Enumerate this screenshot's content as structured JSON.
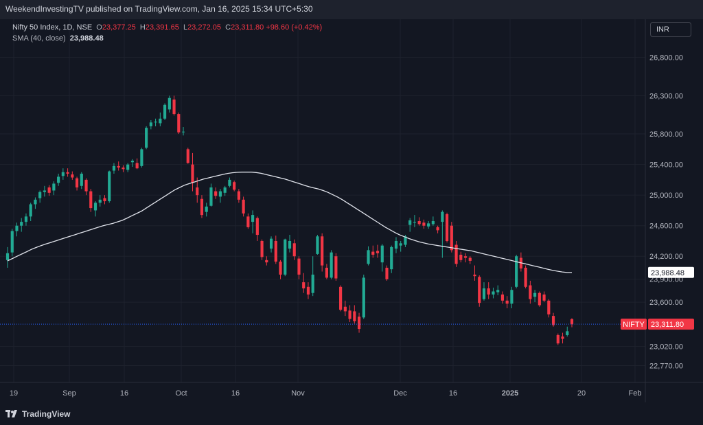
{
  "header": {
    "published_text": "WeekendInvestingTV published on TradingView.com, Jan 16, 2025 15:34 UTC+5:30"
  },
  "legend": {
    "symbol": "Nifty 50 Index, 1D, NSE",
    "open_label": "O",
    "open": "23,377.25",
    "high_label": "H",
    "high": "23,391.65",
    "low_label": "L",
    "low": "23,272.05",
    "close_label": "C",
    "close": "23,311.80",
    "change": "+98.60 (+0.42%)",
    "sma_label": "SMA (40, close)",
    "sma_value": "23,988.48"
  },
  "currency": "INR",
  "footer": {
    "brand": "TradingView"
  },
  "colors": {
    "up": "#22ab94",
    "down": "#f23645",
    "sma": "#e0e3eb",
    "bg": "#131722",
    "grid": "#1e222d"
  },
  "chart_data": {
    "type": "candlestick",
    "title": "Nifty 50 Index, 1D, NSE",
    "price_axis": {
      "ticks": [
        "26,800.00",
        "26,300.00",
        "25,800.00",
        "25,400.00",
        "25,000.00",
        "24,600.00",
        "24,200.00",
        "23,900.00",
        "23,600.00",
        "23,020.00",
        "22,770.00"
      ],
      "ylim": [
        22550,
        27300
      ]
    },
    "time_axis": {
      "ticks": [
        {
          "label": "19",
          "bold": false
        },
        {
          "label": "Sep",
          "bold": false
        },
        {
          "label": "16",
          "bold": false
        },
        {
          "label": "Oct",
          "bold": false
        },
        {
          "label": "16",
          "bold": false
        },
        {
          "label": "Nov",
          "bold": false
        },
        {
          "label": "Dec",
          "bold": false
        },
        {
          "label": "16",
          "bold": false
        },
        {
          "label": "2025",
          "bold": true
        },
        {
          "label": "20",
          "bold": false
        },
        {
          "label": "Feb",
          "bold": false
        }
      ]
    },
    "last_price_tag": {
      "symbol": "NIFTY",
      "value": "23,311.80",
      "price": 23311.8
    },
    "sma_tag": {
      "value": "23,988.48",
      "price": 23988.48
    },
    "candles": [
      [
        24150,
        24320,
        24050,
        24240
      ],
      [
        24250,
        24560,
        24200,
        24530
      ],
      [
        24530,
        24640,
        24460,
        24600
      ],
      [
        24600,
        24700,
        24520,
        24650
      ],
      [
        24650,
        24760,
        24600,
        24720
      ],
      [
        24720,
        24900,
        24660,
        24880
      ],
      [
        24880,
        24970,
        24820,
        24940
      ],
      [
        24960,
        25060,
        24900,
        25040
      ],
      [
        25040,
        25120,
        24980,
        25060
      ],
      [
        25100,
        25130,
        24990,
        25030
      ],
      [
        25060,
        25180,
        25000,
        25150
      ],
      [
        25160,
        25280,
        25120,
        25240
      ],
      [
        25250,
        25350,
        25200,
        25300
      ],
      [
        25300,
        25350,
        25240,
        25280
      ],
      [
        25270,
        25310,
        25200,
        25230
      ],
      [
        25220,
        25240,
        25060,
        25100
      ],
      [
        25120,
        25300,
        25080,
        25280
      ],
      [
        25200,
        25220,
        25000,
        25050
      ],
      [
        25050,
        25080,
        24780,
        24830
      ],
      [
        24800,
        24920,
        24720,
        24900
      ],
      [
        24900,
        25000,
        24850,
        24940
      ],
      [
        24960,
        25000,
        24880,
        24920
      ],
      [
        24920,
        25320,
        24900,
        25310
      ],
      [
        25320,
        25420,
        25280,
        25380
      ],
      [
        25380,
        25440,
        25320,
        25360
      ],
      [
        25360,
        25390,
        25300,
        25340
      ],
      [
        25330,
        25420,
        25300,
        25400
      ],
      [
        25430,
        25470,
        25370,
        25450
      ],
      [
        25420,
        25480,
        25340,
        25350
      ],
      [
        25380,
        25620,
        25360,
        25600
      ],
      [
        25620,
        25900,
        25600,
        25880
      ],
      [
        25900,
        25980,
        25860,
        25950
      ],
      [
        25950,
        26000,
        25900,
        25960
      ],
      [
        25940,
        26080,
        25900,
        26000
      ],
      [
        26000,
        26200,
        25980,
        26180
      ],
      [
        26120,
        26300,
        26080,
        26270
      ],
      [
        26250,
        26300,
        26040,
        26060
      ],
      [
        26060,
        26080,
        25800,
        25820
      ],
      [
        25830,
        25890,
        25780,
        25830
      ],
      [
        25600,
        25620,
        25410,
        25420
      ],
      [
        25400,
        25550,
        25050,
        25160
      ],
      [
        25100,
        25230,
        24900,
        25000
      ],
      [
        24950,
        25000,
        24700,
        24740
      ],
      [
        24780,
        24900,
        24720,
        24850
      ],
      [
        24860,
        25150,
        24850,
        25100
      ],
      [
        25050,
        25100,
        24950,
        24990
      ],
      [
        24980,
        25080,
        24900,
        25050
      ],
      [
        25030,
        25120,
        24990,
        25100
      ],
      [
        25120,
        25230,
        25100,
        25200
      ],
      [
        25170,
        25190,
        25050,
        25070
      ],
      [
        25050,
        25080,
        24900,
        24940
      ],
      [
        24940,
        24980,
        24720,
        24760
      ],
      [
        24720,
        24760,
        24560,
        24580
      ],
      [
        24650,
        24800,
        24500,
        24740
      ],
      [
        24700,
        24720,
        24400,
        24480
      ],
      [
        24400,
        24420,
        24150,
        24190
      ],
      [
        24150,
        24200,
        24080,
        24120
      ],
      [
        24300,
        24460,
        24250,
        24430
      ],
      [
        24400,
        24470,
        24100,
        24130
      ],
      [
        24130,
        24150,
        23900,
        23960
      ],
      [
        23960,
        24430,
        23940,
        24420
      ],
      [
        24300,
        24480,
        24250,
        24400
      ],
      [
        24370,
        24420,
        24150,
        24200
      ],
      [
        24170,
        24200,
        23900,
        23960
      ],
      [
        23860,
        23980,
        23720,
        23780
      ],
      [
        23800,
        23860,
        23640,
        23700
      ],
      [
        23720,
        24200,
        23680,
        23960
      ],
      [
        24230,
        24480,
        24220,
        24460
      ],
      [
        24460,
        24500,
        24000,
        24080
      ],
      [
        24050,
        24100,
        23900,
        23920
      ],
      [
        23920,
        24280,
        23900,
        24250
      ],
      [
        24200,
        24240,
        23880,
        23910
      ],
      [
        23800,
        23820,
        23480,
        23500
      ],
      [
        23540,
        23620,
        23420,
        23480
      ],
      [
        23490,
        23560,
        23340,
        23380
      ],
      [
        23480,
        23560,
        23320,
        23350
      ],
      [
        23410,
        23460,
        23200,
        23250
      ],
      [
        23400,
        23960,
        23380,
        23920
      ],
      [
        24100,
        24330,
        24080,
        24280
      ],
      [
        24260,
        24340,
        24180,
        24220
      ],
      [
        24270,
        24350,
        24180,
        24240
      ],
      [
        24120,
        24360,
        24000,
        24340
      ],
      [
        24050,
        24080,
        23880,
        23900
      ],
      [
        24030,
        24340,
        23980,
        24320
      ],
      [
        24300,
        24450,
        24240,
        24400
      ],
      [
        24340,
        24400,
        24260,
        24370
      ],
      [
        24350,
        24480,
        24320,
        24460
      ],
      [
        24610,
        24700,
        24520,
        24670
      ],
      [
        24640,
        24740,
        24580,
        24650
      ],
      [
        24660,
        24710,
        24600,
        24620
      ],
      [
        24640,
        24680,
        24560,
        24600
      ],
      [
        24590,
        24660,
        24560,
        24630
      ],
      [
        24620,
        24720,
        24600,
        24660
      ],
      [
        24580,
        24600,
        24500,
        24540
      ],
      [
        24650,
        24800,
        24180,
        24780
      ],
      [
        24750,
        24770,
        24380,
        24400
      ],
      [
        24600,
        24650,
        24250,
        24280
      ],
      [
        24350,
        24400,
        24060,
        24100
      ],
      [
        24220,
        24260,
        24120,
        24150
      ],
      [
        24200,
        24240,
        24120,
        24180
      ],
      [
        24180,
        24200,
        24100,
        24140
      ],
      [
        23960,
        24080,
        23880,
        23940
      ],
      [
        23930,
        23950,
        23540,
        23590
      ],
      [
        23640,
        23860,
        23620,
        23780
      ],
      [
        23780,
        23860,
        23640,
        23700
      ],
      [
        23700,
        23790,
        23650,
        23740
      ],
      [
        23730,
        23820,
        23690,
        23760
      ],
      [
        23700,
        23740,
        23580,
        23620
      ],
      [
        23620,
        23680,
        23520,
        23580
      ],
      [
        23580,
        23800,
        23520,
        23760
      ],
      [
        23800,
        24220,
        23780,
        24200
      ],
      [
        24180,
        24250,
        24000,
        24040
      ],
      [
        24050,
        24080,
        23780,
        23800
      ],
      [
        23820,
        23880,
        23580,
        23640
      ],
      [
        23670,
        23760,
        23600,
        23720
      ],
      [
        23720,
        23740,
        23540,
        23560
      ],
      [
        23700,
        23740,
        23600,
        23620
      ],
      [
        23620,
        23640,
        23400,
        23440
      ],
      [
        23420,
        23460,
        23280,
        23300
      ],
      [
        23170,
        23190,
        23040,
        23060
      ],
      [
        23150,
        23200,
        23060,
        23120
      ],
      [
        23170,
        23280,
        23150,
        23220
      ],
      [
        23377,
        23391,
        23272,
        23311
      ]
    ],
    "sma_line": [
      24140,
      24170,
      24200,
      24230,
      24260,
      24290,
      24315,
      24340,
      24360,
      24380,
      24400,
      24420,
      24440,
      24460,
      24480,
      24500,
      24520,
      24540,
      24560,
      24580,
      24600,
      24615,
      24630,
      24650,
      24670,
      24700,
      24730,
      24760,
      24790,
      24830,
      24870,
      24910,
      24950,
      24990,
      25030,
      25070,
      25100,
      25130,
      25150,
      25170,
      25190,
      25210,
      25225,
      25240,
      25255,
      25270,
      25283,
      25292,
      25298,
      25300,
      25300,
      25300,
      25295,
      25285,
      25270,
      25255,
      25240,
      25225,
      25210,
      25190,
      25170,
      25150,
      25130,
      25110,
      25095,
      25080,
      25060,
      25035,
      25005,
      24975,
      24940,
      24900,
      24860,
      24820,
      24780,
      24740,
      24700,
      24660,
      24620,
      24580,
      24545,
      24510,
      24480,
      24455,
      24430,
      24410,
      24390,
      24375,
      24360,
      24350,
      24340,
      24330,
      24320,
      24310,
      24300,
      24290,
      24280,
      24270,
      24255,
      24240,
      24225,
      24210,
      24195,
      24180,
      24165,
      24150,
      24135,
      24120,
      24105,
      24090,
      24075,
      24060,
      24045,
      24030,
      24015,
      24005,
      23995,
      23988,
      23988
    ]
  }
}
